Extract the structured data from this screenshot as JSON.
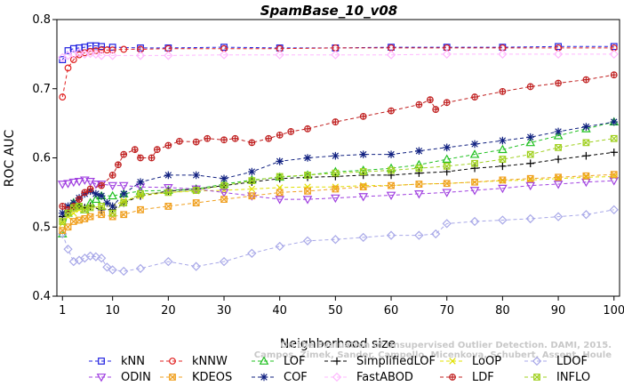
{
  "chart_data": {
    "type": "line",
    "title": "SpamBase_10_v08",
    "xlabel": "Neighborhood size",
    "ylabel": "ROC AUC",
    "xlim": [
      0,
      101
    ],
    "ylim": [
      0.4,
      0.8
    ],
    "xticks": [
      1,
      10,
      20,
      30,
      40,
      50,
      60,
      70,
      80,
      90,
      100
    ],
    "yticks": [
      0.4,
      0.5,
      0.6,
      0.7,
      0.8
    ],
    "grid": false,
    "legend": "bottom",
    "watermark": [
      "On the Evaluation of Unsupervised Outlier Detection. DAMI, 2015.",
      "Campos, Zimek, Sander, Campello, Micenkova, Schubert, Assent, Houle"
    ],
    "series": [
      {
        "name": "kNN",
        "color": "#2020e0",
        "marker": "square",
        "dash": "4,3",
        "x": [
          1,
          2,
          3,
          4,
          5,
          6,
          7,
          8,
          10,
          15,
          20,
          30,
          40,
          50,
          60,
          70,
          80,
          90,
          100
        ],
        "y": [
          0.742,
          0.755,
          0.758,
          0.759,
          0.76,
          0.762,
          0.762,
          0.761,
          0.76,
          0.759,
          0.759,
          0.76,
          0.759,
          0.759,
          0.76,
          0.76,
          0.76,
          0.761,
          0.761
        ]
      },
      {
        "name": "kNNW",
        "color": "#e02020",
        "marker": "circle",
        "dash": "4,3",
        "x": [
          1,
          2,
          3,
          4,
          5,
          6,
          7,
          8,
          9,
          10,
          12,
          15,
          20,
          30,
          40,
          50,
          60,
          70,
          80,
          90,
          100
        ],
        "y": [
          0.688,
          0.73,
          0.742,
          0.749,
          0.752,
          0.754,
          0.755,
          0.756,
          0.756,
          0.756,
          0.757,
          0.757,
          0.758,
          0.758,
          0.758,
          0.759,
          0.759,
          0.759,
          0.759,
          0.759,
          0.759
        ]
      },
      {
        "name": "LOF",
        "color": "#20c020",
        "marker": "triangle",
        "dash": "4,3",
        "x": [
          1,
          2,
          3,
          4,
          5,
          6,
          7,
          8,
          10,
          12,
          15,
          20,
          25,
          30,
          35,
          40,
          45,
          50,
          55,
          60,
          65,
          70,
          75,
          80,
          85,
          90,
          95,
          100
        ],
        "y": [
          0.49,
          0.52,
          0.535,
          0.53,
          0.525,
          0.535,
          0.54,
          0.545,
          0.545,
          0.548,
          0.552,
          0.553,
          0.555,
          0.562,
          0.568,
          0.572,
          0.575,
          0.58,
          0.582,
          0.585,
          0.59,
          0.598,
          0.605,
          0.612,
          0.622,
          0.632,
          0.642,
          0.652
        ]
      },
      {
        "name": "SimplifiedLOF",
        "color": "#000000",
        "marker": "plus",
        "dash": "4,3",
        "x": [
          1,
          2,
          3,
          4,
          5,
          6,
          8,
          10,
          12,
          15,
          20,
          25,
          30,
          35,
          40,
          45,
          50,
          55,
          60,
          65,
          70,
          75,
          80,
          85,
          90,
          95,
          100
        ],
        "y": [
          0.515,
          0.522,
          0.528,
          0.53,
          0.528,
          0.53,
          0.525,
          0.525,
          0.535,
          0.545,
          0.552,
          0.555,
          0.56,
          0.565,
          0.57,
          0.572,
          0.573,
          0.575,
          0.575,
          0.578,
          0.58,
          0.585,
          0.588,
          0.592,
          0.598,
          0.603,
          0.608
        ]
      },
      {
        "name": "LoOP",
        "color": "#e0e000",
        "marker": "x",
        "dash": "4,3",
        "x": [
          1,
          2,
          3,
          4,
          5,
          6,
          8,
          10,
          12,
          15,
          20,
          25,
          30,
          35,
          40,
          45,
          50,
          55,
          60,
          65,
          70,
          75,
          80,
          85,
          90,
          95,
          100
        ],
        "y": [
          0.505,
          0.515,
          0.52,
          0.525,
          0.525,
          0.528,
          0.53,
          0.53,
          0.538,
          0.545,
          0.55,
          0.552,
          0.553,
          0.555,
          0.557,
          0.558,
          0.558,
          0.56,
          0.56,
          0.562,
          0.563,
          0.565,
          0.567,
          0.568,
          0.57,
          0.572,
          0.573
        ]
      },
      {
        "name": "LDOF",
        "color": "#a8a8e8",
        "marker": "diamond",
        "dash": "4,3",
        "x": [
          1,
          2,
          3,
          4,
          5,
          6,
          7,
          8,
          9,
          10,
          12,
          15,
          20,
          25,
          30,
          35,
          40,
          45,
          50,
          55,
          60,
          65,
          68,
          70,
          75,
          80,
          85,
          90,
          95,
          100
        ],
        "y": [
          0.49,
          0.468,
          0.45,
          0.452,
          0.455,
          0.458,
          0.457,
          0.455,
          0.442,
          0.438,
          0.436,
          0.44,
          0.45,
          0.443,
          0.45,
          0.462,
          0.472,
          0.48,
          0.482,
          0.485,
          0.488,
          0.488,
          0.49,
          0.505,
          0.508,
          0.51,
          0.512,
          0.515,
          0.518,
          0.525
        ]
      },
      {
        "name": "ODIN",
        "color": "#a040e0",
        "marker": "triangle-down",
        "dash": "4,3",
        "x": [
          1,
          2,
          3,
          4,
          5,
          6,
          7,
          8,
          10,
          12,
          15,
          20,
          25,
          30,
          35,
          40,
          45,
          50,
          55,
          60,
          65,
          70,
          75,
          80,
          85,
          90,
          95,
          100
        ],
        "y": [
          0.562,
          0.563,
          0.565,
          0.566,
          0.568,
          0.566,
          0.562,
          0.562,
          0.56,
          0.56,
          0.558,
          0.557,
          0.555,
          0.55,
          0.545,
          0.54,
          0.54,
          0.542,
          0.544,
          0.546,
          0.548,
          0.55,
          0.553,
          0.556,
          0.56,
          0.562,
          0.565,
          0.567
        ]
      },
      {
        "name": "KDEOS",
        "color": "#f0a020",
        "marker": "square-x",
        "dash": "4,3",
        "x": [
          1,
          2,
          3,
          4,
          5,
          6,
          8,
          10,
          12,
          15,
          20,
          25,
          30,
          35,
          40,
          45,
          50,
          55,
          60,
          65,
          70,
          75,
          80,
          85,
          90,
          95,
          100
        ],
        "y": [
          0.495,
          0.5,
          0.508,
          0.51,
          0.512,
          0.515,
          0.518,
          0.515,
          0.518,
          0.525,
          0.53,
          0.535,
          0.54,
          0.545,
          0.55,
          0.552,
          0.555,
          0.558,
          0.56,
          0.562,
          0.563,
          0.565,
          0.568,
          0.57,
          0.572,
          0.574,
          0.576
        ]
      },
      {
        "name": "COF",
        "color": "#102080",
        "marker": "star",
        "dash": "4,3",
        "x": [
          1,
          2,
          3,
          4,
          5,
          6,
          7,
          8,
          9,
          10,
          12,
          15,
          20,
          25,
          30,
          35,
          40,
          45,
          50,
          55,
          60,
          65,
          70,
          75,
          80,
          85,
          90,
          95,
          100
        ],
        "y": [
          0.52,
          0.53,
          0.535,
          0.542,
          0.548,
          0.552,
          0.548,
          0.545,
          0.535,
          0.53,
          0.548,
          0.565,
          0.575,
          0.575,
          0.57,
          0.58,
          0.595,
          0.6,
          0.603,
          0.605,
          0.605,
          0.61,
          0.615,
          0.62,
          0.625,
          0.63,
          0.638,
          0.645,
          0.652
        ]
      },
      {
        "name": "FastABOD",
        "color": "#ffb8ff",
        "marker": "diamond",
        "dash": "4,3",
        "x": [
          1,
          2,
          3,
          4,
          5,
          6,
          7,
          8,
          10,
          15,
          20,
          30,
          40,
          50,
          60,
          70,
          80,
          90,
          100
        ],
        "y": [
          0.745,
          0.748,
          0.75,
          0.752,
          0.75,
          0.751,
          0.75,
          0.748,
          0.748,
          0.748,
          0.748,
          0.749,
          0.749,
          0.749,
          0.749,
          0.75,
          0.75,
          0.75,
          0.75
        ]
      },
      {
        "name": "LDF",
        "color": "#c02020",
        "marker": "circle-plus",
        "dash": "4,3",
        "x": [
          1,
          2,
          3,
          4,
          5,
          6,
          8,
          10,
          11,
          12,
          14,
          15,
          17,
          18,
          20,
          22,
          25,
          27,
          30,
          32,
          35,
          38,
          40,
          42,
          45,
          50,
          55,
          60,
          65,
          67,
          68,
          70,
          75,
          80,
          85,
          90,
          95,
          100
        ],
        "y": [
          0.53,
          0.525,
          0.53,
          0.54,
          0.55,
          0.555,
          0.56,
          0.575,
          0.59,
          0.605,
          0.612,
          0.6,
          0.6,
          0.612,
          0.618,
          0.624,
          0.623,
          0.628,
          0.626,
          0.628,
          0.622,
          0.628,
          0.633,
          0.638,
          0.642,
          0.652,
          0.66,
          0.668,
          0.677,
          0.684,
          0.67,
          0.68,
          0.688,
          0.696,
          0.703,
          0.708,
          0.713,
          0.72
        ]
      },
      {
        "name": "INFLO",
        "color": "#a0d020",
        "marker": "hourglass",
        "dash": "4,3",
        "x": [
          1,
          2,
          3,
          4,
          5,
          6,
          8,
          10,
          12,
          15,
          20,
          25,
          30,
          35,
          40,
          45,
          50,
          55,
          60,
          65,
          70,
          75,
          80,
          85,
          90,
          95,
          100
        ],
        "y": [
          0.508,
          0.52,
          0.528,
          0.53,
          0.525,
          0.528,
          0.53,
          0.52,
          0.535,
          0.548,
          0.55,
          0.553,
          0.56,
          0.567,
          0.573,
          0.575,
          0.578,
          0.58,
          0.582,
          0.585,
          0.588,
          0.592,
          0.598,
          0.605,
          0.615,
          0.622,
          0.628
        ]
      }
    ],
    "legend_rows": [
      [
        "kNN",
        "kNNW",
        "LOF",
        "SimplifiedLOF",
        "LoOP",
        "LDOF"
      ],
      [
        "ODIN",
        "KDEOS",
        "COF",
        "FastABOD",
        "LDF",
        "INFLO"
      ]
    ]
  }
}
